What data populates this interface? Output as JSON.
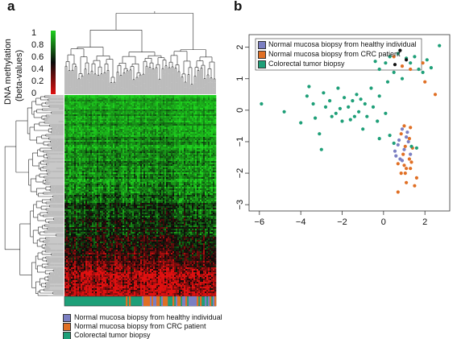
{
  "panels": {
    "a": "a",
    "b": "b"
  },
  "colors": {
    "healthy_normal": "#7B7FC2",
    "crc_normal": "#E06F24",
    "tumor": "#1E9F78",
    "heat_high": "#1ED11E",
    "heat_mid": "#0a0a0a",
    "heat_low": "#E01010"
  },
  "legend_labels": {
    "healthy": "Normal mucosa biopsy from healthy individual",
    "crc": "Normal mucosa biopsy from CRC patient",
    "tumor": "Colorectal tumor biopsy"
  },
  "chart_data": [
    {
      "type": "heatmap",
      "panel": "a",
      "colorbar": {
        "label_line1": "DNA methylation",
        "label_line2": "(beta-values)",
        "ticks": [
          "1",
          "0.8",
          "0.6",
          "0.4",
          "0.2",
          "0"
        ],
        "range": [
          0,
          1
        ],
        "colors": [
          "#E01010",
          "#0a0a0a",
          "#1ED11E"
        ]
      },
      "sample_annotation": [
        "tumor",
        "crc_normal",
        "healthy_normal"
      ],
      "dendrograms": [
        "columns",
        "rows"
      ],
      "legend": [
        "Normal mucosa biopsy from healthy individual",
        "Normal mucosa biopsy from CRC patient",
        "Colorectal tumor biopsy"
      ]
    },
    {
      "type": "scatter",
      "panel": "b",
      "xlim": [
        -6.5,
        3.2
      ],
      "ylim": [
        -3.2,
        2.4
      ],
      "xticks": [
        -6,
        -4,
        -2,
        0,
        2
      ],
      "xtick_labels": [
        "−6",
        "−4",
        "−2",
        "0",
        "2"
      ],
      "yticks": [
        -3,
        -2,
        -1,
        0,
        1,
        2
      ],
      "ytick_labels": [
        "−3",
        "−2",
        "−1",
        "0",
        "1",
        "2"
      ],
      "legend_position": "top-left",
      "series": [
        {
          "name": "Normal mucosa biopsy from healthy individual",
          "color": "#7B7FC2",
          "points": [
            [
              0.9,
              -0.6
            ],
            [
              1.1,
              -0.85
            ],
            [
              0.7,
              -1.1
            ],
            [
              1.2,
              -1.0
            ],
            [
              0.55,
              -1.3
            ],
            [
              1.3,
              -1.4
            ],
            [
              0.8,
              -1.55
            ],
            [
              0.6,
              -1.45
            ],
            [
              1.0,
              -1.25
            ],
            [
              0.75,
              -0.95
            ],
            [
              1.15,
              -0.7
            ],
            [
              0.9,
              -1.6
            ]
          ]
        },
        {
          "name": "Normal mucosa biopsy from CRC patient",
          "color": "#E06F24",
          "points": [
            [
              1.0,
              -0.5
            ],
            [
              1.3,
              -0.55
            ],
            [
              0.85,
              -0.75
            ],
            [
              1.25,
              -0.9
            ],
            [
              1.05,
              -1.15
            ],
            [
              1.4,
              -1.2
            ],
            [
              0.95,
              -1.4
            ],
            [
              1.25,
              -1.55
            ],
            [
              0.7,
              -1.7
            ],
            [
              1.35,
              -1.65
            ],
            [
              1.0,
              -1.75
            ],
            [
              1.1,
              -1.85
            ],
            [
              1.3,
              -1.85
            ],
            [
              0.85,
              -2.0
            ],
            [
              1.6,
              -2.15
            ],
            [
              1.5,
              -2.4
            ],
            [
              1.1,
              -2.3
            ],
            [
              0.7,
              -2.6
            ],
            [
              1.05,
              -2.0
            ],
            [
              0.5,
              1.7
            ],
            [
              1.3,
              1.3
            ],
            [
              2.0,
              0.9
            ],
            [
              2.5,
              0.5
            ],
            [
              1.9,
              1.5
            ],
            [
              0.9,
              1.4
            ]
          ]
        },
        {
          "name": "Colorectal tumor biopsy",
          "color": "#1E9F78",
          "points": [
            [
              -5.9,
              0.2
            ],
            [
              -4.8,
              -0.05
            ],
            [
              -4.0,
              -0.4
            ],
            [
              -3.7,
              0.45
            ],
            [
              -3.6,
              0.75
            ],
            [
              -3.4,
              0.2
            ],
            [
              -3.3,
              -0.25
            ],
            [
              -3.1,
              -0.75
            ],
            [
              -3.0,
              -1.25
            ],
            [
              -2.9,
              0.55
            ],
            [
              -2.8,
              0.1
            ],
            [
              -2.6,
              0.3
            ],
            [
              -2.5,
              -0.2
            ],
            [
              -2.3,
              -0.1
            ],
            [
              -2.2,
              0.7
            ],
            [
              -2.1,
              0.05
            ],
            [
              -2.0,
              -0.35
            ],
            [
              -1.9,
              0.4
            ],
            [
              -1.7,
              0.1
            ],
            [
              -1.6,
              -0.3
            ],
            [
              -1.5,
              0.3
            ],
            [
              -1.4,
              -0.2
            ],
            [
              -1.3,
              0.5
            ],
            [
              -1.2,
              -0.05
            ],
            [
              -1.1,
              0.35
            ],
            [
              -1.0,
              -0.6
            ],
            [
              -0.9,
              0.2
            ],
            [
              -0.8,
              -0.2
            ],
            [
              -0.6,
              0.7
            ],
            [
              -0.5,
              0.1
            ],
            [
              -0.3,
              -0.35
            ],
            [
              -0.2,
              0.45
            ],
            [
              0.1,
              -0.1
            ],
            [
              -0.2,
              1.3
            ],
            [
              -0.4,
              1.55
            ],
            [
              0.1,
              1.5
            ],
            [
              0.3,
              1.7
            ],
            [
              0.5,
              1.2
            ],
            [
              0.7,
              1.8
            ],
            [
              0.9,
              1.0
            ],
            [
              1.1,
              1.65
            ],
            [
              1.3,
              1.5
            ],
            [
              1.5,
              1.7
            ],
            [
              1.7,
              1.3
            ],
            [
              1.9,
              1.2
            ],
            [
              2.1,
              1.6
            ],
            [
              2.3,
              1.35
            ],
            [
              2.7,
              2.05
            ],
            [
              -0.2,
              -0.9
            ],
            [
              0.3,
              -0.8
            ],
            [
              0.5,
              -1.05
            ],
            [
              1.35,
              -1.15
            ],
            [
              1.6,
              -1.2
            ],
            [
              0.2,
              0.9
            ]
          ]
        },
        {
          "name": "",
          "color": "#111111",
          "points": [
            [
              0.55,
              1.45
            ],
            [
              0.8,
              1.9
            ],
            [
              1.1,
              1.6
            ]
          ]
        }
      ]
    }
  ]
}
